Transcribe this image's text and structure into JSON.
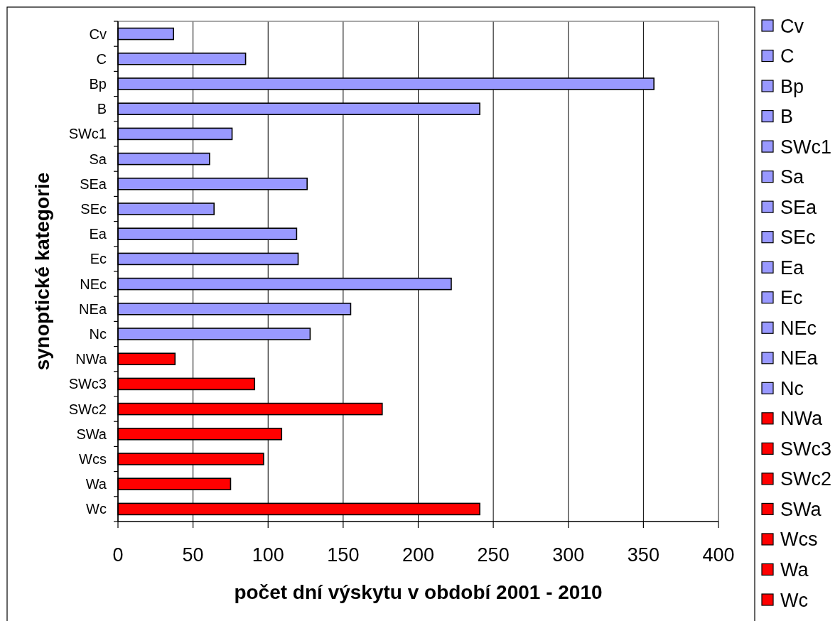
{
  "chart_data": {
    "type": "bar",
    "orientation": "horizontal",
    "stacked": true,
    "xlabel": "počet dní výskytu v období 2001 - 2010",
    "ylabel": "synoptické kategorie",
    "categories": [
      "Cv",
      "C",
      "Bp",
      "B",
      "SWc1",
      "Sa",
      "SEa",
      "SEc",
      "Ea",
      "Ec",
      "NEc",
      "NEa",
      "Nc",
      "NWa",
      "SWc3",
      "SWc2",
      "SWa",
      "Wcs",
      "Wa",
      "Wc"
    ],
    "series": [
      {
        "name": "Cv",
        "color": "#9999ff",
        "values": [
          37,
          null,
          null,
          null,
          null,
          null,
          null,
          null,
          null,
          null,
          null,
          null,
          null,
          null,
          null,
          null,
          null,
          null,
          null,
          null
        ]
      },
      {
        "name": "C",
        "color": "#9999ff",
        "values": [
          null,
          85,
          null,
          null,
          null,
          null,
          null,
          null,
          null,
          null,
          null,
          null,
          null,
          null,
          null,
          null,
          null,
          null,
          null,
          null
        ]
      },
      {
        "name": "Bp",
        "color": "#9999ff",
        "values": [
          null,
          null,
          357,
          null,
          null,
          null,
          null,
          null,
          null,
          null,
          null,
          null,
          null,
          null,
          null,
          null,
          null,
          null,
          null,
          null
        ]
      },
      {
        "name": "B",
        "color": "#9999ff",
        "values": [
          null,
          null,
          null,
          241,
          null,
          null,
          null,
          null,
          null,
          null,
          null,
          null,
          null,
          null,
          null,
          null,
          null,
          null,
          null,
          null
        ]
      },
      {
        "name": "SWc1",
        "color": "#9999ff",
        "values": [
          null,
          null,
          null,
          null,
          76,
          null,
          null,
          null,
          null,
          null,
          null,
          null,
          null,
          null,
          null,
          null,
          null,
          null,
          null,
          null
        ]
      },
      {
        "name": "Sa",
        "color": "#9999ff",
        "values": [
          null,
          null,
          null,
          null,
          null,
          61,
          null,
          null,
          null,
          null,
          null,
          null,
          null,
          null,
          null,
          null,
          null,
          null,
          null,
          null
        ]
      },
      {
        "name": "SEa",
        "color": "#9999ff",
        "values": [
          null,
          null,
          null,
          null,
          null,
          null,
          126,
          null,
          null,
          null,
          null,
          null,
          null,
          null,
          null,
          null,
          null,
          null,
          null,
          null
        ]
      },
      {
        "name": "SEc",
        "color": "#9999ff",
        "values": [
          null,
          null,
          null,
          null,
          null,
          null,
          null,
          64,
          null,
          null,
          null,
          null,
          null,
          null,
          null,
          null,
          null,
          null,
          null,
          null
        ]
      },
      {
        "name": "Ea",
        "color": "#9999ff",
        "values": [
          null,
          null,
          null,
          null,
          null,
          null,
          null,
          null,
          119,
          null,
          null,
          null,
          null,
          null,
          null,
          null,
          null,
          null,
          null,
          null
        ]
      },
      {
        "name": "Ec",
        "color": "#9999ff",
        "values": [
          null,
          null,
          null,
          null,
          null,
          null,
          null,
          null,
          null,
          120,
          null,
          null,
          null,
          null,
          null,
          null,
          null,
          null,
          null,
          null
        ]
      },
      {
        "name": "NEc",
        "color": "#9999ff",
        "values": [
          null,
          null,
          null,
          null,
          null,
          null,
          null,
          null,
          null,
          null,
          222,
          null,
          null,
          null,
          null,
          null,
          null,
          null,
          null,
          null
        ]
      },
      {
        "name": "NEa",
        "color": "#9999ff",
        "values": [
          null,
          null,
          null,
          null,
          null,
          null,
          null,
          null,
          null,
          null,
          null,
          155,
          null,
          null,
          null,
          null,
          null,
          null,
          null,
          null
        ]
      },
      {
        "name": "Nc",
        "color": "#9999ff",
        "values": [
          null,
          null,
          null,
          null,
          null,
          null,
          null,
          null,
          null,
          null,
          null,
          null,
          128,
          null,
          null,
          null,
          null,
          null,
          null,
          null
        ]
      },
      {
        "name": "NWa",
        "color": "#ff0000",
        "values": [
          null,
          null,
          null,
          null,
          null,
          null,
          null,
          null,
          null,
          null,
          null,
          null,
          null,
          38,
          null,
          null,
          null,
          null,
          null,
          null
        ]
      },
      {
        "name": "SWc3",
        "color": "#ff0000",
        "values": [
          null,
          null,
          null,
          null,
          null,
          null,
          null,
          null,
          null,
          null,
          null,
          null,
          null,
          null,
          91,
          null,
          null,
          null,
          null,
          null
        ]
      },
      {
        "name": "SWc2",
        "color": "#ff0000",
        "values": [
          null,
          null,
          null,
          null,
          null,
          null,
          null,
          null,
          null,
          null,
          null,
          null,
          null,
          null,
          null,
          176,
          null,
          null,
          null,
          null
        ]
      },
      {
        "name": "SWa",
        "color": "#ff0000",
        "values": [
          null,
          null,
          null,
          null,
          null,
          null,
          null,
          null,
          null,
          null,
          null,
          null,
          null,
          null,
          null,
          null,
          109,
          null,
          null,
          null
        ]
      },
      {
        "name": "Wcs",
        "color": "#ff0000",
        "values": [
          null,
          null,
          null,
          null,
          null,
          null,
          null,
          null,
          null,
          null,
          null,
          null,
          null,
          null,
          null,
          null,
          null,
          97,
          null,
          null
        ]
      },
      {
        "name": "Wa",
        "color": "#ff0000",
        "values": [
          null,
          null,
          null,
          null,
          null,
          null,
          null,
          null,
          null,
          null,
          null,
          null,
          null,
          null,
          null,
          null,
          null,
          null,
          75,
          null
        ]
      },
      {
        "name": "Wc",
        "color": "#ff0000",
        "values": [
          null,
          null,
          null,
          null,
          null,
          null,
          null,
          null,
          null,
          null,
          null,
          null,
          null,
          null,
          null,
          null,
          null,
          null,
          null,
          241
        ]
      }
    ],
    "xlim": [
      0,
      400
    ],
    "xticks": [
      0,
      50,
      100,
      150,
      200,
      250,
      300,
      350,
      400
    ],
    "grid": "x",
    "legend": "right"
  }
}
